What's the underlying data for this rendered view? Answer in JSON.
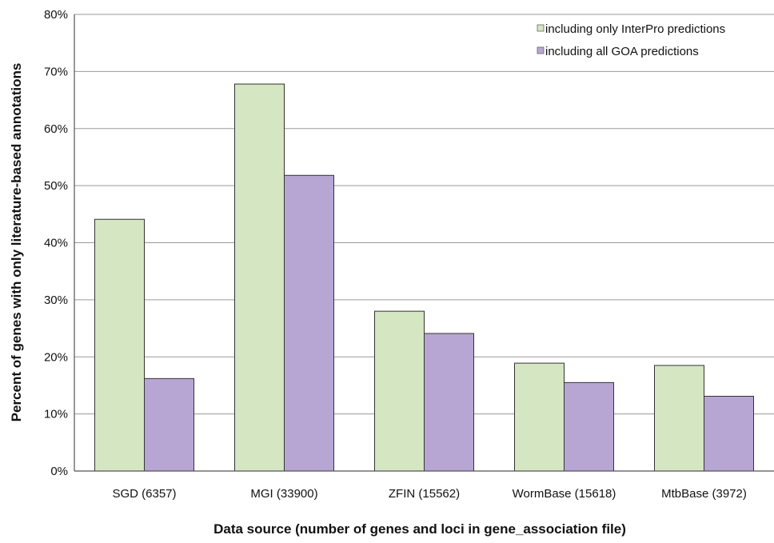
{
  "chart_data": {
    "type": "bar",
    "title": "",
    "xlabel": "Data source (number of genes and loci in gene_association file)",
    "ylabel": "Percent of genes with only literature-based annotations",
    "categories": [
      "SGD (6357)",
      "MGI (33900)",
      "ZFIN (15562)",
      "WormBase (15618)",
      "MtbBase (3972)"
    ],
    "series": [
      {
        "name": "including only InterPro predictions",
        "values": [
          44.1,
          67.8,
          28.0,
          18.9,
          18.5
        ],
        "color": "#d5e6c3"
      },
      {
        "name": "including all GOA predictions",
        "values": [
          16.2,
          51.8,
          24.1,
          15.5,
          13.1
        ],
        "color": "#b7a6d4"
      }
    ],
    "ylim": [
      0,
      80
    ],
    "yticks": [
      "0%",
      "10%",
      "20%",
      "30%",
      "40%",
      "50%",
      "60%",
      "70%",
      "80%"
    ],
    "grid": true,
    "legend_position": "top-right"
  }
}
